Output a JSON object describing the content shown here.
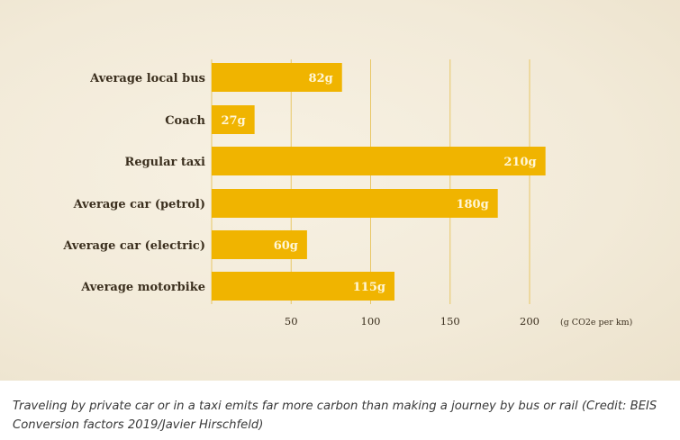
{
  "chart_data": {
    "type": "bar",
    "orientation": "horizontal",
    "categories": [
      "Average local bus",
      "Coach",
      "Regular taxi",
      "Average car (petrol)",
      "Average car (electric)",
      "Average motorbike"
    ],
    "values": [
      82,
      27,
      210,
      180,
      60,
      115
    ],
    "value_labels": [
      "82g",
      "27g",
      "210g",
      "180g",
      "60g",
      "115g"
    ],
    "x_ticks": [
      50,
      100,
      150,
      200
    ],
    "x_tick_labels": [
      "50",
      "100",
      "150",
      "200"
    ],
    "xlabel": "(g CO2e per km)",
    "xlim": [
      0,
      212
    ],
    "grid": true,
    "colors": {
      "bar": "#f0b400",
      "bar_label": "#fff6d6",
      "grid": "#e8c766",
      "text": "#3b2f1e",
      "background": "#f3ecdb"
    }
  },
  "caption": "Traveling by private car or in a taxi emits far more carbon than making a journey by bus or rail (Credit: BEIS Conversion factors 2019/Javier Hirschfeld)"
}
